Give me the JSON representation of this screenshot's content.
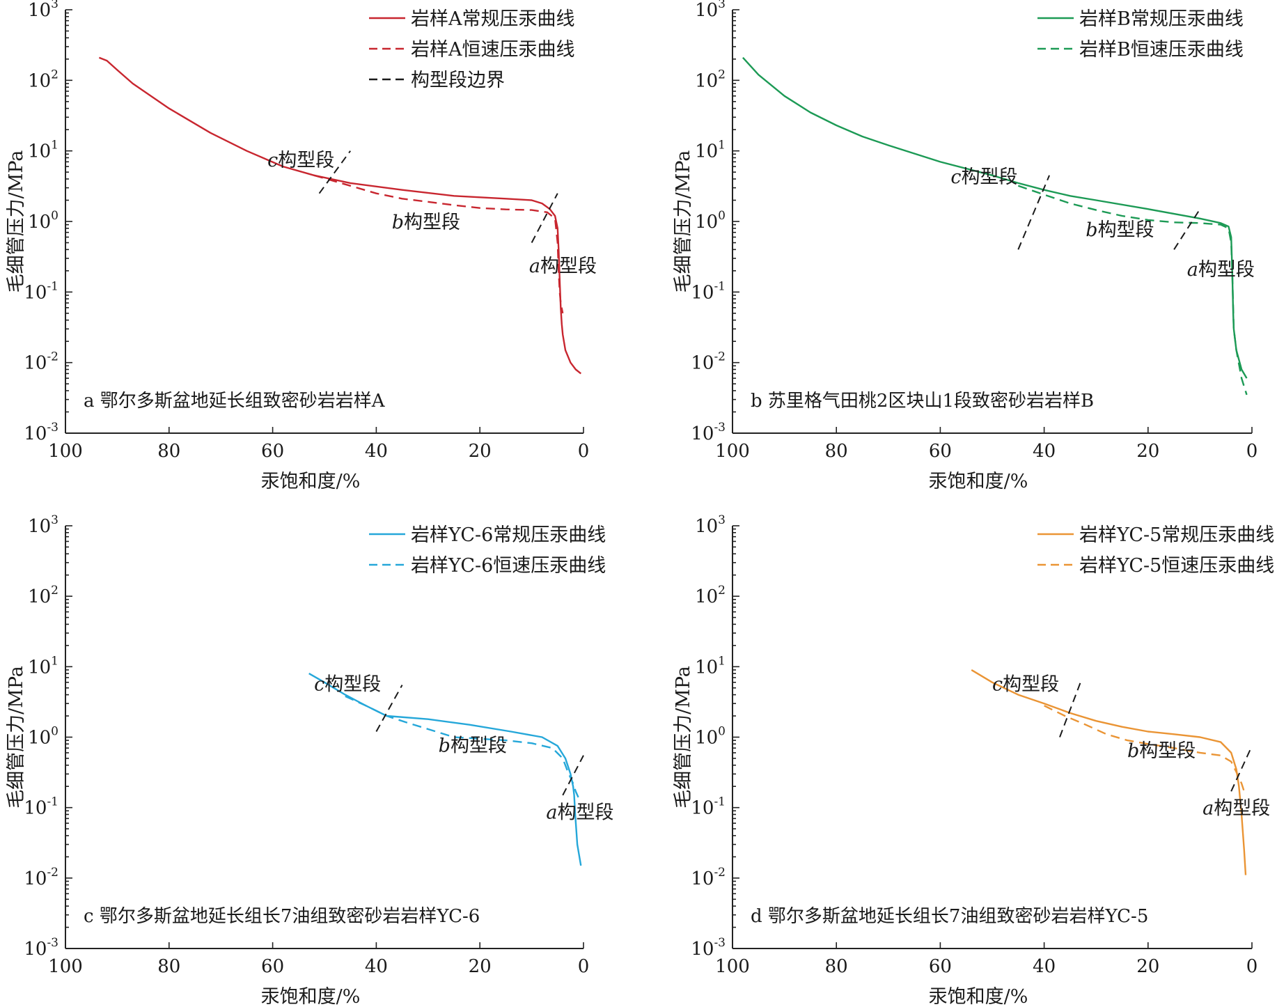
{
  "colors": {
    "a": "#c8262f",
    "b": "#1c9a55",
    "c": "#25a7d9",
    "d": "#ea9434",
    "boundary": "#1a1a1a"
  },
  "chart_data": [
    {
      "id": "a",
      "type": "line",
      "caption": "a 鄂尔多斯盆地延长组致密砂岩岩样A",
      "xlabel": "汞饱和度/%",
      "ylabel": "毛细管压力/MPa",
      "xlim": [
        100,
        0
      ],
      "ylim": [
        0.001,
        1000
      ],
      "y_scale": "log",
      "xticks": [
        "100",
        "80",
        "60",
        "40",
        "20",
        "0"
      ],
      "yticks": [
        "10^-3",
        "10^-2",
        "10^-1",
        "10^0",
        "10^1",
        "10^2",
        "10^3"
      ],
      "legend_position": "top-right",
      "series": [
        {
          "name": "岩样A常规压汞曲线",
          "style": "solid",
          "x": [
            93.5,
            92,
            90,
            87,
            80,
            72,
            65,
            58,
            52,
            45,
            35,
            25,
            15,
            10,
            8,
            6.5,
            5.5,
            5,
            4.8,
            4.6,
            4.4,
            4.2,
            4,
            3.5,
            2.5,
            1.5,
            0.5
          ],
          "y": [
            210,
            190,
            140,
            90,
            40,
            18,
            10,
            6,
            4.5,
            3.5,
            2.8,
            2.3,
            2.1,
            2.0,
            1.8,
            1.5,
            1.2,
            0.8,
            0.4,
            0.15,
            0.06,
            0.035,
            0.025,
            0.015,
            0.01,
            0.008,
            0.007
          ]
        },
        {
          "name": "岩样A恒速压汞曲线",
          "style": "dashed",
          "x": [
            52,
            45,
            40,
            35,
            30,
            25,
            20,
            15,
            10,
            7,
            5.5,
            5,
            4.8,
            4.6,
            4.4,
            4
          ],
          "y": [
            4.5,
            3.2,
            2.5,
            2.1,
            1.9,
            1.7,
            1.55,
            1.48,
            1.45,
            1.35,
            1.1,
            0.5,
            0.2,
            0.1,
            0.07,
            0.05
          ]
        },
        {
          "name": "构型段边界",
          "style": "dashed-black"
        }
      ],
      "boundaries": [
        {
          "x": [
            51,
            45
          ],
          "y": [
            2.5,
            10
          ]
        },
        {
          "x": [
            10,
            5
          ],
          "y": [
            0.5,
            2.5
          ]
        }
      ],
      "segment_labels": [
        {
          "letter": "c",
          "text": "构型段",
          "x": 61,
          "y": 6
        },
        {
          "letter": "b",
          "text": "构型段",
          "x": 37,
          "y": 0.8
        },
        {
          "letter": "a",
          "text": "构型段",
          "x": 10.5,
          "y": 0.19
        }
      ]
    },
    {
      "id": "b",
      "type": "line",
      "caption": "b 苏里格气田桃2区块山1段致密砂岩岩样B",
      "xlabel": "汞饱和度/%",
      "ylabel": "毛细管压力/MPa",
      "xlim": [
        100,
        0
      ],
      "ylim": [
        0.001,
        1000
      ],
      "y_scale": "log",
      "xticks": [
        "100",
        "80",
        "60",
        "40",
        "20",
        "0"
      ],
      "yticks": [
        "10^-3",
        "10^-2",
        "10^-1",
        "10^0",
        "10^1",
        "10^2",
        "10^3"
      ],
      "legend_position": "top-right",
      "series": [
        {
          "name": "岩样B常规压汞曲线",
          "style": "solid",
          "x": [
            98,
            95,
            90,
            85,
            80,
            75,
            70,
            60,
            50,
            45,
            40,
            35,
            30,
            20,
            10,
            6,
            4.5,
            4,
            3.8,
            3.6,
            3.5,
            3,
            2,
            1
          ],
          "y": [
            210,
            120,
            60,
            35,
            23,
            16,
            12,
            7,
            4.5,
            3.5,
            2.8,
            2.3,
            2.0,
            1.5,
            1.1,
            0.95,
            0.85,
            0.6,
            0.2,
            0.05,
            0.03,
            0.015,
            0.008,
            0.006
          ]
        },
        {
          "name": "岩样B恒速压汞曲线",
          "style": "dashed",
          "x": [
            45,
            40,
            35,
            30,
            25,
            20,
            15,
            10,
            6,
            4.5,
            4,
            3.8,
            3.6,
            3.5,
            3,
            2,
            1
          ],
          "y": [
            3.2,
            2.4,
            1.8,
            1.45,
            1.2,
            1.05,
            0.97,
            0.95,
            0.9,
            0.8,
            0.5,
            0.2,
            0.06,
            0.03,
            0.015,
            0.006,
            0.0035
          ]
        }
      ],
      "boundaries": [
        {
          "x": [
            45,
            39
          ],
          "y": [
            0.4,
            4.5
          ]
        },
        {
          "x": [
            15,
            10
          ],
          "y": [
            0.4,
            1.5
          ]
        }
      ],
      "segment_labels": [
        {
          "letter": "c",
          "text": "构型段",
          "x": 58,
          "y": 3.5
        },
        {
          "letter": "b",
          "text": "构型段",
          "x": 32,
          "y": 0.62
        },
        {
          "letter": "a",
          "text": "构型段",
          "x": 12.5,
          "y": 0.17
        }
      ]
    },
    {
      "id": "c",
      "type": "line",
      "caption": "c 鄂尔多斯盆地延长组长7油组致密砂岩岩样YC-6",
      "xlabel": "汞饱和度/%",
      "ylabel": "毛细管压力/MPa",
      "xlim": [
        100,
        0
      ],
      "ylim": [
        0.001,
        1000
      ],
      "y_scale": "log",
      "xticks": [
        "100",
        "80",
        "60",
        "40",
        "20",
        "0"
      ],
      "yticks": [
        "10^-3",
        "10^-2",
        "10^-1",
        "10^0",
        "10^1",
        "10^2",
        "10^3"
      ],
      "legend_position": "top-right",
      "series": [
        {
          "name": "岩样YC-6常规压汞曲线",
          "style": "solid",
          "x": [
            53,
            50,
            46,
            42,
            38,
            30,
            22,
            14,
            8,
            5,
            3.5,
            2.5,
            2,
            1.8,
            1.6,
            1.2,
            0.5
          ],
          "y": [
            8,
            6,
            4,
            2.8,
            2.0,
            1.8,
            1.5,
            1.2,
            1.0,
            0.75,
            0.5,
            0.3,
            0.2,
            0.15,
            0.08,
            0.03,
            0.015
          ]
        },
        {
          "name": "岩样YC-6恒速压汞曲线",
          "style": "dashed",
          "x": [
            46,
            42,
            38,
            34,
            30,
            25,
            20,
            15,
            10,
            6,
            4,
            3,
            2,
            1.5,
            1,
            0.5
          ],
          "y": [
            3.8,
            2.8,
            2.0,
            1.6,
            1.3,
            1.0,
            0.95,
            0.9,
            0.82,
            0.7,
            0.5,
            0.32,
            0.22,
            0.17,
            0.14,
            0.12
          ]
        }
      ],
      "boundaries": [
        {
          "x": [
            40,
            35
          ],
          "y": [
            1.2,
            5.5
          ]
        },
        {
          "x": [
            4,
            0
          ],
          "y": [
            0.15,
            0.55
          ]
        }
      ],
      "segment_labels": [
        {
          "letter": "c",
          "text": "构型段",
          "x": 52,
          "y": 4.6
        },
        {
          "letter": "b",
          "text": "构型段",
          "x": 28,
          "y": 0.62
        },
        {
          "letter": "a",
          "text": "构型段",
          "x": 7.2,
          "y": 0.07
        }
      ]
    },
    {
      "id": "d",
      "type": "line",
      "caption": "d 鄂尔多斯盆地延长组长7油组致密砂岩岩样YC-5",
      "xlabel": "汞饱和度/%",
      "ylabel": "毛细管压力/MPa",
      "xlim": [
        100,
        0
      ],
      "ylim": [
        0.001,
        1000
      ],
      "y_scale": "log",
      "xticks": [
        "100",
        "80",
        "60",
        "40",
        "20",
        "0"
      ],
      "yticks": [
        "10^-3",
        "10^-2",
        "10^-1",
        "10^0",
        "10^1",
        "10^2",
        "10^3"
      ],
      "legend_position": "top-right",
      "series": [
        {
          "name": "岩样YC-5常规压汞曲线",
          "style": "solid",
          "x": [
            54,
            50,
            45,
            40,
            35,
            30,
            25,
            20,
            15,
            10,
            6,
            4,
            3,
            2.5,
            2,
            1.5,
            1.2
          ],
          "y": [
            9,
            6,
            4,
            3,
            2.2,
            1.7,
            1.4,
            1.2,
            1.1,
            1.0,
            0.85,
            0.6,
            0.35,
            0.2,
            0.08,
            0.025,
            0.011
          ]
        },
        {
          "name": "岩样YC-5恒速压汞曲线",
          "style": "dashed",
          "x": [
            40,
            36,
            32,
            28,
            24,
            20,
            15,
            10,
            6,
            4,
            3,
            2,
            1.5
          ],
          "y": [
            2.8,
            2.0,
            1.5,
            1.1,
            0.9,
            0.8,
            0.7,
            0.6,
            0.55,
            0.45,
            0.32,
            0.22,
            0.17
          ]
        }
      ],
      "boundaries": [
        {
          "x": [
            37,
            33
          ],
          "y": [
            1.0,
            6.0
          ]
        },
        {
          "x": [
            4,
            0
          ],
          "y": [
            0.17,
            0.75
          ]
        }
      ],
      "segment_labels": [
        {
          "letter": "c",
          "text": "构型段",
          "x": 50,
          "y": 4.6
        },
        {
          "letter": "b",
          "text": "构型段",
          "x": 24,
          "y": 0.52
        },
        {
          "letter": "a",
          "text": "构型段",
          "x": 9.5,
          "y": 0.08
        }
      ]
    }
  ]
}
